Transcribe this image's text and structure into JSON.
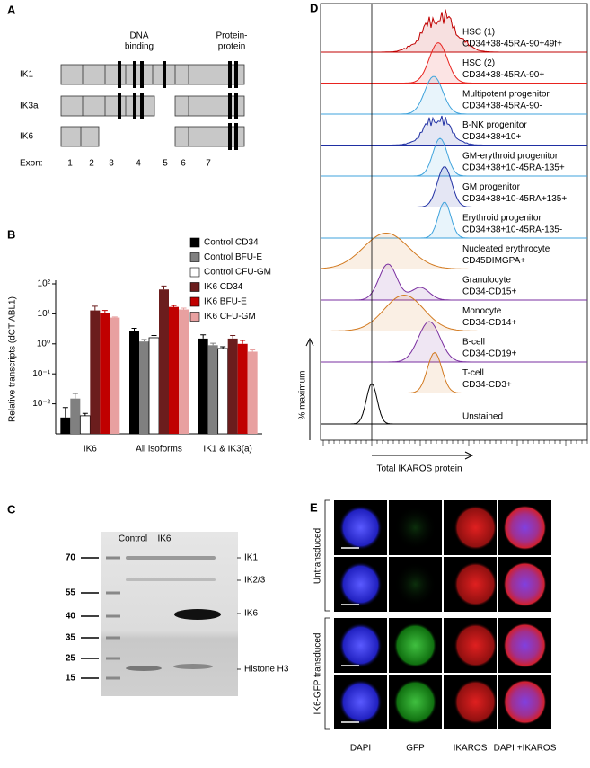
{
  "panel_a": {
    "label": "A",
    "dna_binding": [
      "DNA",
      "binding"
    ],
    "protein_protein": [
      "Protein-",
      "protein"
    ],
    "isoforms": [
      "IK1",
      "IK3a",
      "IK6"
    ],
    "exon_label": "Exon:",
    "exons": [
      "1",
      "2",
      "3",
      "4",
      "5",
      "6",
      "7"
    ]
  },
  "chart_data": {
    "type": "bar",
    "panel_label": "B",
    "y_label": "Relative transcripts (dCT ABL1)",
    "categories": [
      "IK6",
      "All isoforms",
      "IK1 & IK3(a)"
    ],
    "log_scale": true,
    "ylim": [
      0.001,
      100
    ],
    "yticks": [
      {
        "value": 100,
        "label": "10²"
      },
      {
        "value": 10,
        "label": "10¹"
      },
      {
        "value": 1,
        "label": "10⁰"
      },
      {
        "value": 0.1,
        "label": "10⁻¹"
      },
      {
        "value": 0.01,
        "label": "10⁻²"
      }
    ],
    "legend": "upper right",
    "series": [
      {
        "name": "Control CD34",
        "color": "#000000",
        "values": [
          0.0035,
          2.6,
          1.5
        ],
        "errors": [
          0.004,
          0.7,
          0.5
        ]
      },
      {
        "name": "Control BFU-E",
        "color": "#808080",
        "values": [
          0.015,
          1.2,
          0.9
        ],
        "errors": [
          0.007,
          0.2,
          0.15
        ]
      },
      {
        "name": "Control CFU-GM",
        "color": "#ffffff",
        "values": [
          0.004,
          1.6,
          0.7
        ],
        "errors": [
          0.0008,
          0.3,
          0.1
        ]
      },
      {
        "name": "IK6 CD34",
        "color": "#6b1d1d",
        "values": [
          13,
          65,
          1.5
        ],
        "errors": [
          5,
          20,
          0.4
        ]
      },
      {
        "name": "IK6 BFU-E",
        "color": "#c00000",
        "values": [
          11,
          17,
          1.0
        ],
        "errors": [
          2,
          2,
          0.3
        ]
      },
      {
        "name": "IK6 CFU-GM",
        "color": "#e8a0a0",
        "values": [
          7.5,
          14,
          0.55
        ],
        "errors": [
          0.4,
          1.5,
          0.08
        ]
      }
    ]
  },
  "panel_c": {
    "label": "C",
    "lanes": [
      "Control",
      "IK6"
    ],
    "markers": [
      "70",
      "55",
      "40",
      "35",
      "25",
      "15"
    ],
    "bands": [
      "IK1",
      "IK2/3",
      "IK6",
      "Histone H3"
    ]
  },
  "panel_d": {
    "label": "D",
    "y_label": "% maximum",
    "x_label": "Total IKAROS protein",
    "rows": [
      {
        "name": "HSC (1)",
        "markers": "CD34+38-45RA-90+49f+",
        "color": "#c00000"
      },
      {
        "name": "HSC (2)",
        "markers": "CD34+38-45RA-90+",
        "color": "#e8231f"
      },
      {
        "name": "Multipotent progenitor",
        "markers": "CD34+38-45RA-90-",
        "color": "#3fa3dc"
      },
      {
        "name": "B-NK progenitor",
        "markers": "CD34+38+10+",
        "color": "#1f2fa3"
      },
      {
        "name": "GM-erythroid progenitor",
        "markers": "CD34+38+10-45RA-135+",
        "color": "#3fa3dc"
      },
      {
        "name": "GM progenitor",
        "markers": "CD34+38+10-45RA+135+",
        "color": "#1f2fa3"
      },
      {
        "name": "Erythroid progenitor",
        "markers": "CD34+38+10-45RA-135-",
        "color": "#3fa3dc"
      },
      {
        "name": "Nucleated erythrocyte",
        "markers": "CD45DIMGPA+",
        "color": "#d2791f"
      },
      {
        "name": "Granulocyte",
        "markers": "CD34-CD15+",
        "color": "#7a2fa0"
      },
      {
        "name": "Monocyte",
        "markers": "CD34-CD14+",
        "color": "#d2791f"
      },
      {
        "name": "B-cell",
        "markers": "CD34-CD19+",
        "color": "#7a2fa0"
      },
      {
        "name": "T-cell",
        "markers": "CD34-CD3+",
        "color": "#d2791f"
      },
      {
        "name": "Unstained",
        "color": "#000000"
      }
    ]
  },
  "panel_e": {
    "label": "E",
    "row_groups": [
      "Untransduced",
      "IK6-GFP transduced"
    ],
    "columns": [
      "DAPI",
      "GFP",
      "IKAROS",
      "DAPI +IKAROS"
    ]
  }
}
